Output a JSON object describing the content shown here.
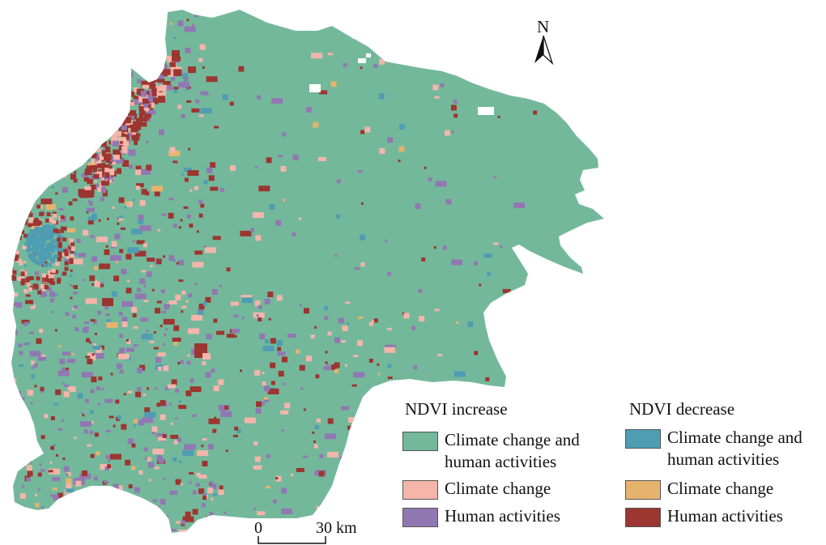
{
  "map": {
    "north_label": "N",
    "scale": {
      "start_label": "0",
      "end_label": "30 km"
    }
  },
  "legend": {
    "increase": {
      "heading": "NDVI increase",
      "items": [
        {
          "lines": [
            "Climate change and",
            "human activities"
          ],
          "color": "#74b89b"
        },
        {
          "lines": [
            "Climate change"
          ],
          "color": "#f5b5aa"
        },
        {
          "lines": [
            "Human activities"
          ],
          "color": "#9178b2"
        }
      ]
    },
    "decrease": {
      "heading": "NDVI decrease",
      "items": [
        {
          "lines": [
            "Climate change and",
            "human activities"
          ],
          "color": "#4f9db2"
        },
        {
          "lines": [
            "Climate change"
          ],
          "color": "#e6b36e"
        },
        {
          "lines": [
            "Human activities"
          ],
          "color": "#9c3630"
        }
      ]
    }
  }
}
